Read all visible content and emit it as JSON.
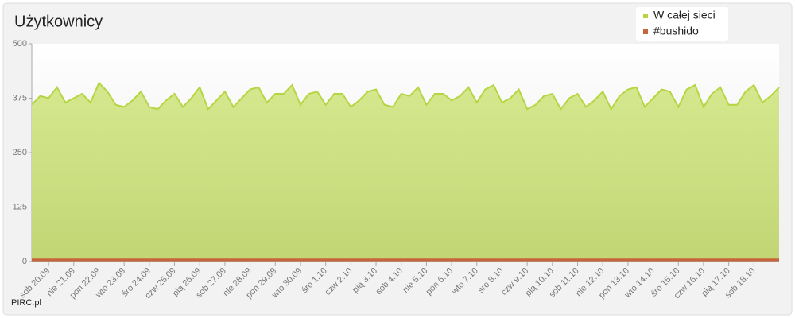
{
  "chart_data": {
    "type": "area",
    "title": "Użytkownicy",
    "footer": "PIRC.pl",
    "categories": [
      null,
      null,
      "sob 20.09",
      null,
      null,
      "nie 21.09",
      null,
      null,
      "pon 22.09",
      null,
      null,
      "wto 23.09",
      null,
      null,
      "śro 24.09",
      null,
      null,
      "czw 25.09",
      null,
      null,
      "pią 26.09",
      null,
      null,
      "sob 27.09",
      null,
      null,
      "nie 28.09",
      null,
      null,
      "pon 29.09",
      null,
      null,
      "wto 30.09",
      null,
      null,
      "śro  1.10",
      null,
      null,
      "czw  2.10",
      null,
      null,
      "pią  3.10",
      null,
      null,
      "sob  4.10",
      null,
      null,
      "nie  5.10",
      null,
      null,
      "pon  6.10",
      null,
      null,
      "wto  7.10",
      null,
      null,
      "śro  8.10",
      null,
      null,
      "czw  9.10",
      null,
      null,
      "pią 10.10",
      null,
      null,
      "sob 11.10",
      null,
      null,
      "nie 12.10",
      null,
      null,
      "pon 13.10",
      null,
      null,
      "wto 14.10",
      null,
      null,
      "śro 15.10",
      null,
      null,
      "czw 16.10",
      null,
      null,
      "pią 17.10",
      null,
      null,
      "sob 18.10",
      null,
      null,
      null
    ],
    "series": [
      {
        "name": "W całej sieci",
        "color": "#b5d543",
        "values": [
          360,
          380,
          375,
          400,
          365,
          375,
          385,
          365,
          410,
          390,
          360,
          355,
          370,
          390,
          355,
          350,
          370,
          385,
          355,
          375,
          400,
          350,
          370,
          390,
          355,
          375,
          395,
          400,
          365,
          385,
          385,
          405,
          360,
          385,
          390,
          360,
          385,
          385,
          355,
          370,
          390,
          395,
          360,
          355,
          385,
          380,
          400,
          360,
          385,
          385,
          370,
          380,
          400,
          365,
          395,
          405,
          365,
          375,
          395,
          350,
          360,
          380,
          385,
          350,
          375,
          385,
          355,
          370,
          390,
          350,
          380,
          395,
          400,
          355,
          375,
          395,
          390,
          355,
          395,
          405,
          355,
          385,
          400,
          360,
          360,
          390,
          405,
          365,
          380,
          400
        ]
      },
      {
        "name": "#bushido",
        "color": "#c8643c",
        "values": [
          5,
          5,
          5,
          5,
          5,
          5,
          5,
          5,
          5,
          5,
          5,
          5,
          5,
          5,
          5,
          5,
          5,
          5,
          5,
          5,
          5,
          5,
          5,
          5,
          5,
          5,
          5,
          5,
          5,
          5,
          5,
          5,
          5,
          5,
          5,
          5,
          5,
          5,
          5,
          5,
          5,
          5,
          5,
          5,
          5,
          5,
          5,
          5,
          5,
          5,
          5,
          5,
          5,
          5,
          5,
          5,
          5,
          5,
          5,
          5,
          5,
          5,
          5,
          5,
          5,
          5,
          5,
          5,
          5,
          5,
          5,
          5,
          5,
          5,
          5,
          5,
          5,
          5,
          5,
          5,
          5,
          5,
          5,
          5,
          5,
          5,
          5,
          5,
          5,
          5
        ]
      }
    ],
    "ylim": [
      0,
      500
    ],
    "yticks": [
      0,
      125,
      250,
      375,
      500
    ],
    "grid": true
  }
}
